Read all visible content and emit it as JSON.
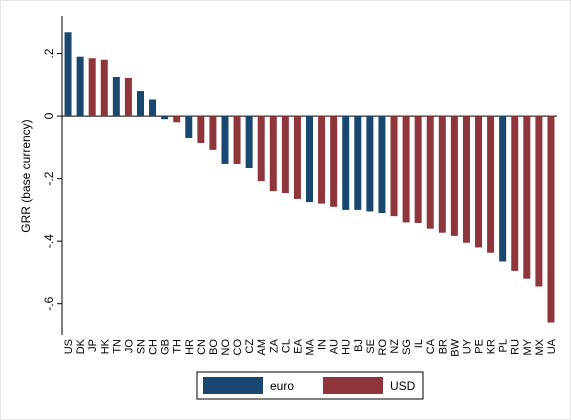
{
  "chart_data": {
    "type": "bar",
    "y_label": "GRR (base currency)",
    "categories": [
      "US",
      "DK",
      "JP",
      "HK",
      "TN",
      "JO",
      "SN",
      "CH",
      "GB",
      "TH",
      "HR",
      "CN",
      "BO",
      "NO",
      "CO",
      "CZ",
      "AM",
      "ZA",
      "CL",
      "EA",
      "MA",
      "IN",
      "AU",
      "HU",
      "BJ",
      "SE",
      "RO",
      "NZ",
      "SG",
      "IL",
      "CA",
      "BR",
      "BW",
      "UY",
      "PE",
      "KR",
      "PL",
      "RU",
      "MY",
      "MX",
      "UA"
    ],
    "series": [
      {
        "name": "euro",
        "color": "#1a476f",
        "values": [
          0.268,
          0.19,
          null,
          null,
          0.125,
          null,
          0.08,
          0.053,
          -0.01,
          null,
          -0.07,
          null,
          null,
          -0.153,
          null,
          -0.166,
          null,
          null,
          null,
          null,
          -0.275,
          null,
          null,
          -0.3,
          -0.3,
          -0.305,
          -0.31,
          null,
          null,
          null,
          null,
          null,
          null,
          null,
          null,
          null,
          -0.465,
          null,
          null,
          null,
          null
        ]
      },
      {
        "name": "USD",
        "color": "#90353b",
        "values": [
          null,
          null,
          0.185,
          0.18,
          null,
          0.122,
          null,
          null,
          null,
          -0.02,
          null,
          -0.086,
          -0.108,
          null,
          -0.153,
          null,
          -0.208,
          -0.24,
          -0.246,
          -0.265,
          null,
          -0.28,
          -0.29,
          null,
          null,
          null,
          null,
          -0.32,
          -0.34,
          -0.342,
          -0.36,
          -0.373,
          -0.383,
          -0.405,
          -0.42,
          -0.437,
          null,
          -0.495,
          -0.52,
          -0.545,
          -0.66
        ]
      }
    ],
    "ylim": [
      -0.7,
      0.32
    ],
    "yticks": [
      {
        "value": 0.2,
        "label": ".2"
      },
      0,
      {
        "value": -0.2,
        "label": "-.2"
      },
      {
        "value": -0.4,
        "label": "-.4"
      },
      {
        "value": -0.6,
        "label": "-.6"
      }
    ],
    "legend": "bottom"
  }
}
